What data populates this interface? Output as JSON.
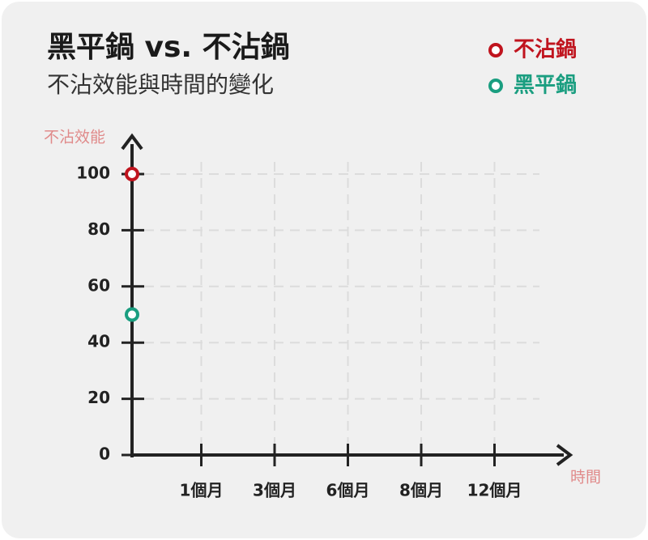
{
  "chart_data": {
    "type": "line",
    "title": "黑平鍋 vs. 不沾鍋",
    "subtitle": "不沾效能與時間的變化",
    "y_label": "不沾效能",
    "x_label": "時間",
    "categories": [
      null,
      "1個月",
      "3個月",
      "6個月",
      "8個月",
      "12個月"
    ],
    "series": [
      {
        "name": "不沾鍋",
        "color": "#c0141e",
        "values": [
          100,
          null,
          null,
          null,
          null,
          null
        ]
      },
      {
        "name": "黑平鍋",
        "color": "#1a9e80",
        "values": [
          50,
          null,
          null,
          null,
          null,
          null
        ]
      }
    ],
    "ylim": [
      0,
      100
    ],
    "yticks": [
      0,
      20,
      40,
      60,
      80,
      100
    ],
    "grid": true,
    "legend": "top-right"
  }
}
